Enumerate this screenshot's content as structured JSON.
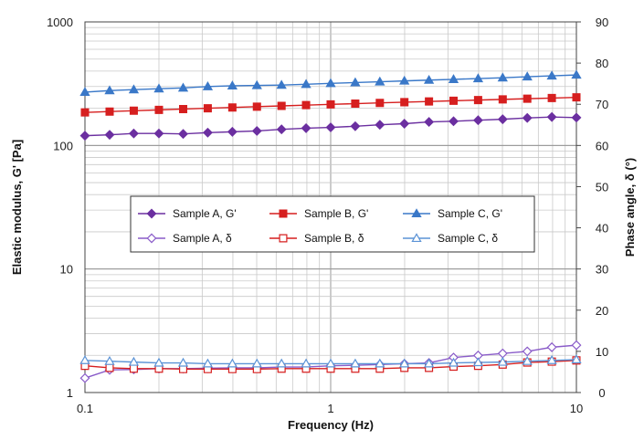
{
  "chart_data": {
    "type": "line",
    "title": "",
    "xlabel": "Frequency (Hz)",
    "ylabel_left": "Elastic modulus, G' [Pa]",
    "ylabel_right": "Phase angle, δ (°)",
    "x_scale": "log",
    "y_left_scale": "log",
    "xlim": [
      0.1,
      10
    ],
    "ylim_left": [
      1,
      1000
    ],
    "ylim_right": [
      0,
      90
    ],
    "x_tick_labels": [
      "0.1",
      "1",
      "10"
    ],
    "y_left_tick_labels": [
      "1",
      "10",
      "100",
      "1000"
    ],
    "y_right_tick_labels": [
      "0",
      "10",
      "20",
      "30",
      "40",
      "50",
      "60",
      "70",
      "80",
      "90"
    ],
    "grid": true,
    "legend_position": "center-left",
    "x": [
      0.1,
      0.126,
      0.158,
      0.2,
      0.251,
      0.316,
      0.398,
      0.501,
      0.631,
      0.794,
      1.0,
      1.259,
      1.585,
      1.995,
      2.512,
      3.162,
      3.981,
      5.012,
      6.31,
      7.943,
      10.0
    ],
    "series": [
      {
        "name": "Sample A, G'",
        "axis": "left",
        "color": "#6b2fa0",
        "marker": "diamond",
        "filled": true,
        "values": [
          120,
          122,
          125,
          125,
          124,
          127,
          129,
          131,
          135,
          138,
          140,
          143,
          147,
          150,
          155,
          157,
          160,
          163,
          167,
          170,
          168
        ]
      },
      {
        "name": "Sample B, G'",
        "axis": "left",
        "color": "#d61f1f",
        "marker": "square",
        "filled": true,
        "values": [
          185,
          188,
          191,
          194,
          197,
          200,
          203,
          206,
          209,
          212,
          215,
          218,
          221,
          224,
          227,
          230,
          233,
          236,
          239,
          242,
          245
        ]
      },
      {
        "name": "Sample C, G'",
        "axis": "left",
        "color": "#3a78c8",
        "marker": "triangle",
        "filled": true,
        "values": [
          270,
          278,
          283,
          288,
          292,
          300,
          304,
          306,
          308,
          313,
          318,
          323,
          328,
          333,
          338,
          343,
          348,
          353,
          360,
          366,
          372
        ]
      },
      {
        "name": "Sample A, δ",
        "axis": "right",
        "color": "#8a5cc9",
        "marker": "diamond",
        "filled": false,
        "values": [
          3.5,
          5.5,
          5.6,
          5.8,
          5.8,
          5.9,
          6.0,
          6.0,
          6.2,
          6.2,
          6.5,
          6.6,
          6.8,
          7.0,
          7.2,
          8.5,
          9.0,
          9.5,
          10.0,
          11.0,
          11.5
        ]
      },
      {
        "name": "Sample B, δ",
        "axis": "right",
        "color": "#d61f1f",
        "marker": "square",
        "filled": false,
        "values": [
          6.5,
          6.0,
          5.8,
          5.8,
          5.7,
          5.7,
          5.7,
          5.7,
          5.8,
          5.8,
          5.8,
          5.8,
          5.8,
          6.0,
          6.0,
          6.3,
          6.5,
          6.8,
          7.3,
          7.5,
          7.8
        ]
      },
      {
        "name": "Sample C, δ",
        "axis": "right",
        "color": "#5b93d6",
        "marker": "triangle",
        "filled": false,
        "values": [
          7.8,
          7.6,
          7.4,
          7.2,
          7.2,
          7.0,
          7.0,
          7.0,
          7.0,
          7.0,
          7.0,
          7.0,
          7.0,
          7.0,
          7.0,
          7.2,
          7.3,
          7.4,
          7.6,
          7.8,
          8.0
        ]
      }
    ]
  }
}
